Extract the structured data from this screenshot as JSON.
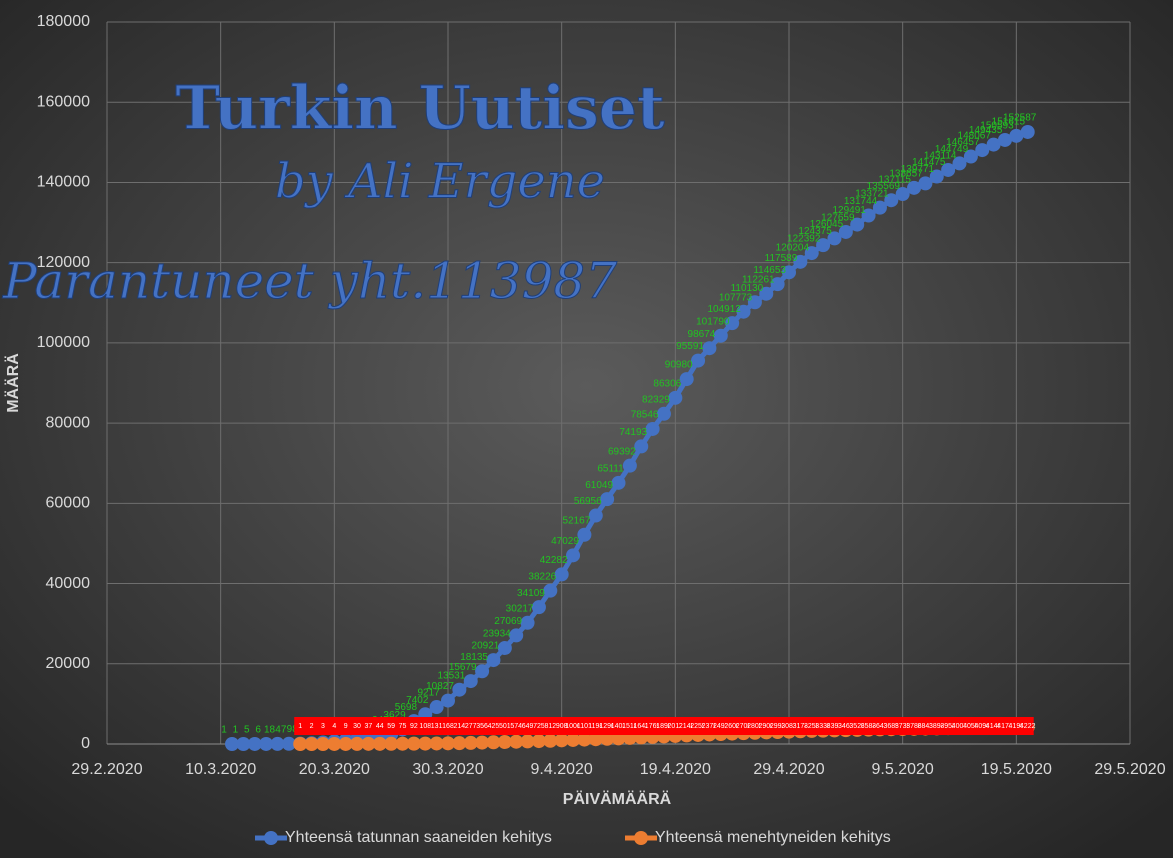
{
  "chart_data": {
    "type": "line",
    "annotations": [
      "Turkin Uutiset",
      "by Ali Ergene",
      "Parantuneet yht.113987"
    ],
    "y_label": "MÄÄRÄ",
    "x_label": "PÄIVÄMÄÄRÄ",
    "xlim": [
      "29.2.2020",
      "29.5.2020"
    ],
    "xticks": [
      "29.2.2020",
      "10.3.2020",
      "20.3.2020",
      "30.3.2020",
      "9.4.2020",
      "19.4.2020",
      "29.4.2020",
      "9.5.2020",
      "19.5.2020",
      "29.5.2020"
    ],
    "ylim": [
      0,
      180000
    ],
    "yticks": [
      0,
      20000,
      40000,
      60000,
      80000,
      100000,
      120000,
      140000,
      160000,
      180000
    ],
    "grid": true,
    "legend": "bottom",
    "series": [
      {
        "name": "Yhteensä tatunnan saaneiden kehitys",
        "color": "#4472c4",
        "label_color": "#22c322",
        "x": [
          "11.3.2020",
          "12.3.2020",
          "13.3.2020",
          "14.3.2020",
          "15.3.2020",
          "16.3.2020",
          "17.3.2020",
          "18.3.2020",
          "19.3.2020",
          "20.3.2020",
          "21.3.2020",
          "22.3.2020",
          "23.3.2020",
          "24.3.2020",
          "25.3.2020",
          "26.3.2020",
          "27.3.2020",
          "28.3.2020",
          "29.3.2020",
          "30.3.2020",
          "31.3.2020",
          "1.4.2020",
          "2.4.2020",
          "3.4.2020",
          "4.4.2020",
          "5.4.2020",
          "6.4.2020",
          "7.4.2020",
          "8.4.2020",
          "9.4.2020",
          "10.4.2020",
          "11.4.2020",
          "12.4.2020",
          "13.4.2020",
          "14.4.2020",
          "15.4.2020",
          "16.4.2020",
          "17.4.2020",
          "18.4.2020",
          "19.4.2020",
          "20.4.2020",
          "21.4.2020",
          "22.4.2020",
          "23.4.2020",
          "24.4.2020",
          "25.4.2020",
          "26.4.2020",
          "27.4.2020",
          "28.4.2020",
          "29.4.2020",
          "30.4.2020",
          "1.5.2020",
          "2.5.2020",
          "3.5.2020",
          "4.5.2020",
          "5.5.2020",
          "6.5.2020",
          "7.5.2020",
          "8.5.2020",
          "9.5.2020",
          "10.5.2020",
          "11.5.2020",
          "12.5.2020",
          "13.5.2020",
          "14.5.2020",
          "15.5.2020",
          "16.5.2020",
          "17.5.2020",
          "18.5.2020",
          "19.5.2020",
          "20.5.2020"
        ],
        "values": [
          1,
          1,
          5,
          6,
          18,
          47,
          98,
          191,
          359,
          670,
          947,
          1236,
          1529,
          1872,
          2433,
          3629,
          5698,
          7402,
          9217,
          10827,
          13531,
          15679,
          18135,
          20921,
          23934,
          27069,
          30217,
          34109,
          38226,
          42282,
          47029,
          52167,
          56956,
          61049,
          65111,
          69392,
          74193,
          78546,
          82329,
          86306,
          90980,
          95591,
          98674,
          101790,
          104912,
          107773,
          110130,
          112261,
          114653,
          117589,
          120204,
          122392,
          124375,
          126045,
          127659,
          129491,
          131744,
          133721,
          135569,
          137115,
          138657,
          139771,
          141475,
          143114,
          144749,
          146457,
          148067,
          149435,
          150593,
          151615,
          152587
        ]
      },
      {
        "name": "Yhteensä menehtyneiden kehitys",
        "color": "#ed7d31",
        "label_color": "#ffffff",
        "label_background": "#ff0000",
        "x": [
          "17.3.2020",
          "18.3.2020",
          "19.3.2020",
          "20.3.2020",
          "21.3.2020",
          "22.3.2020",
          "23.3.2020",
          "24.3.2020",
          "25.3.2020",
          "26.3.2020",
          "27.3.2020",
          "28.3.2020",
          "29.3.2020",
          "30.3.2020",
          "31.3.2020",
          "1.4.2020",
          "2.4.2020",
          "3.4.2020",
          "4.4.2020",
          "5.4.2020",
          "6.4.2020",
          "7.4.2020",
          "8.4.2020",
          "9.4.2020",
          "10.4.2020",
          "11.4.2020",
          "12.4.2020",
          "13.4.2020",
          "14.4.2020",
          "15.4.2020",
          "16.4.2020",
          "17.4.2020",
          "18.4.2020",
          "19.4.2020",
          "20.4.2020",
          "21.4.2020",
          "22.4.2020",
          "23.4.2020",
          "24.4.2020",
          "25.4.2020",
          "26.4.2020",
          "27.4.2020",
          "28.4.2020",
          "29.4.2020",
          "30.4.2020",
          "1.5.2020",
          "2.5.2020",
          "3.5.2020",
          "4.5.2020",
          "5.5.2020",
          "6.5.2020",
          "7.5.2020",
          "8.5.2020",
          "9.5.2020",
          "10.5.2020",
          "11.5.2020",
          "12.5.2020",
          "13.5.2020",
          "14.5.2020",
          "15.5.2020",
          "16.5.2020",
          "17.5.2020",
          "18.5.2020",
          "19.5.2020",
          "20.5.2020"
        ],
        "values": [
          1,
          2,
          3,
          4,
          9,
          30,
          37,
          44,
          59,
          75,
          92,
          108,
          131,
          168,
          214,
          277,
          356,
          425,
          501,
          574,
          649,
          725,
          812,
          908,
          1006,
          1101,
          1198,
          1296,
          1403,
          1518,
          1643,
          1769,
          1890,
          2017,
          2140,
          2259,
          2376,
          2491,
          2600,
          2706,
          2805,
          2900,
          2992,
          3081,
          3174,
          3258,
          3336,
          3397,
          3461,
          3520,
          3584,
          3641,
          3689,
          3739,
          3786,
          3841,
          3894,
          3952,
          4007,
          4055,
          4096,
          4140,
          4171,
          4199,
          4222
        ]
      }
    ]
  }
}
